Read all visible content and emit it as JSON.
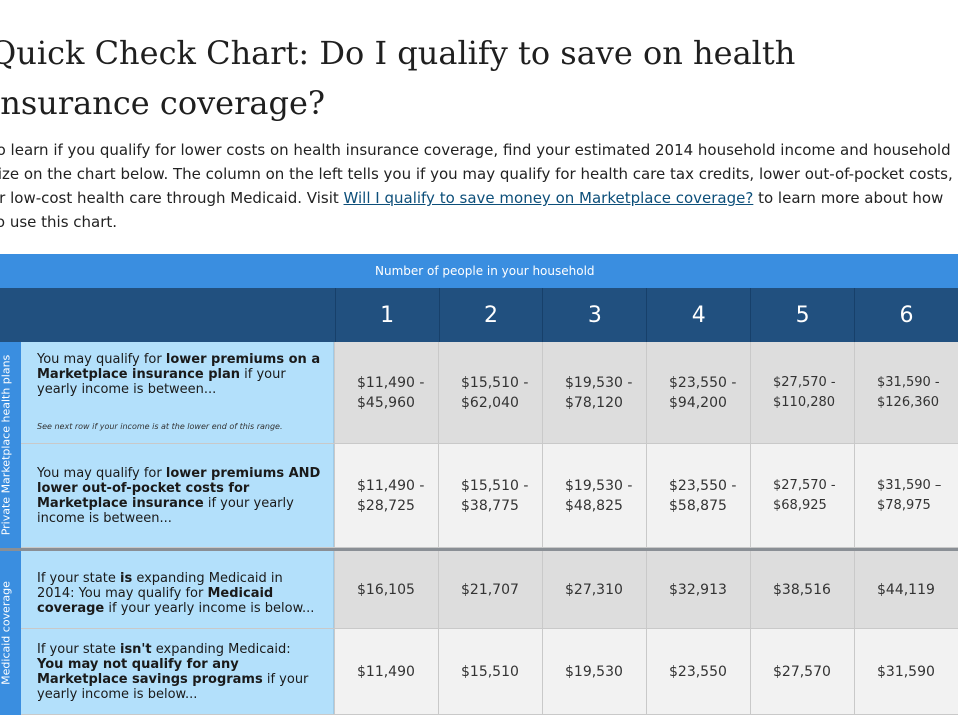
{
  "heading": "Quick Check Chart: Do I qualify to save on health insurance coverage?",
  "intro": {
    "before_link": "To learn if you qualify for lower costs on health insurance coverage, find your estimated 2014 household income and household size on the chart below. The column on the left tells you if you may qualify for health care tax credits, lower out-of-pocket costs, or low-cost health care through Medicaid. Visit ",
    "link_text": "Will I qualify to save money on Marketplace coverage?",
    "after_link": " to learn more about how to use this chart."
  },
  "chart": {
    "banner": "Number of people in your household",
    "household_sizes": [
      "1",
      "2",
      "3",
      "4",
      "5",
      "6"
    ],
    "sections": [
      {
        "side_label": "Private Marketplace health plans",
        "rows": [
          {
            "desc": {
              "a": "You may qualify for ",
              "b": "lower premiums on a Marketplace insurance plan",
              "c": " if your yearly income is between..."
            },
            "note": "See next row if your income is at the lower end of this range.",
            "values": [
              "$11,490 - $45,960",
              "$15,510 - $62,040",
              "$19,530 - $78,120",
              "$23,550 - $94,200",
              "$27,570 - $110,280",
              "$31,590 - $126,360"
            ]
          },
          {
            "desc": {
              "a": "You may qualify for ",
              "b": "lower premiums AND lower out-of-pocket costs for Marketplace insurance",
              "c": " if your yearly income is between..."
            },
            "values": [
              "$11,490 - $28,725",
              "$15,510 - $38,775",
              "$19,530 - $48,825",
              "$23,550 - $58,875",
              "$27,570 - $68,925",
              "$31,590 – $78,975"
            ]
          }
        ]
      },
      {
        "side_label": "Medicaid coverage",
        "rows": [
          {
            "desc": {
              "a": "If your state ",
              "b": "is",
              "c": " expanding Medicaid in 2014: You may qualify for ",
              "d": "Medicaid coverage",
              "e": " if your yearly income is below..."
            },
            "values": [
              "$16,105",
              "$21,707",
              "$27,310",
              "$32,913",
              "$38,516",
              "$44,119"
            ]
          },
          {
            "desc": {
              "a": "If your state ",
              "b": "isn't",
              "c": " expanding Medicaid: ",
              "d": "You may not qualify for any Marketplace savings programs",
              "e": " if your yearly income is below..."
            },
            "values": [
              "$11,490",
              "$15,510",
              "$19,530",
              "$23,550",
              "$27,570",
              "$31,590"
            ]
          }
        ]
      }
    ]
  }
}
